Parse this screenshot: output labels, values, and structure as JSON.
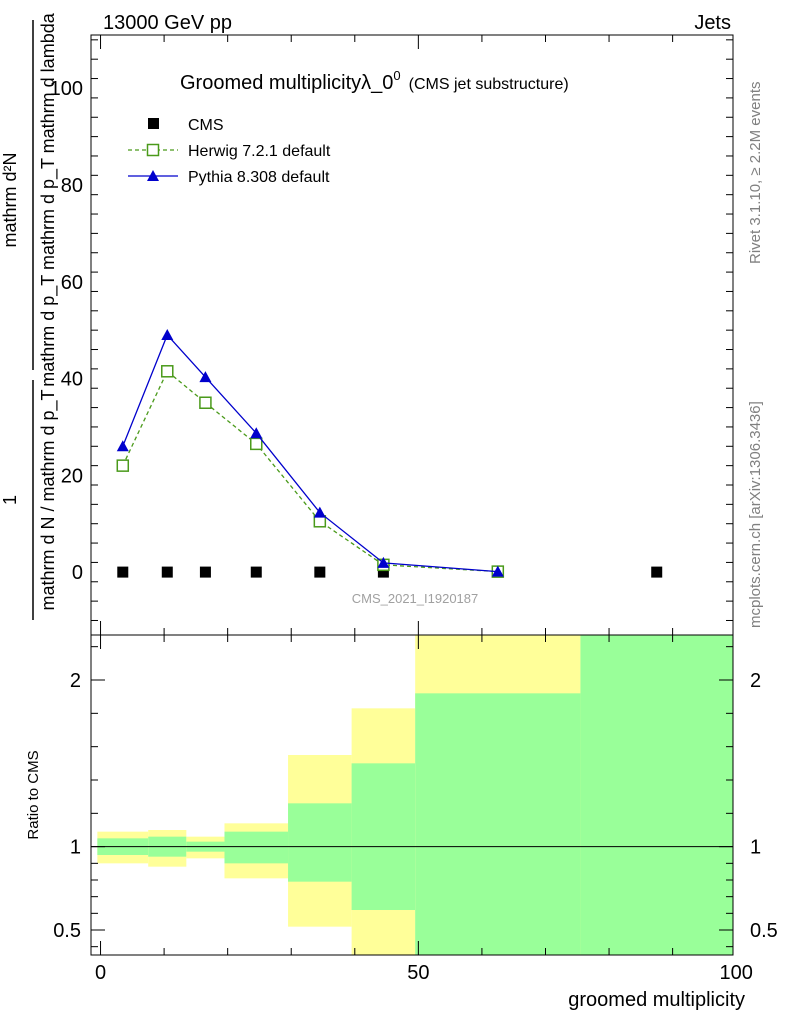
{
  "header": {
    "left": "13000 GeV pp",
    "right": "Jets"
  },
  "side_labels": {
    "rivet": "Rivet 3.1.10, ≥ 2.2M events",
    "mcplots": "mcplots.cern.ch [arXiv:1306.3436]"
  },
  "chart_data": [
    {
      "type": "line",
      "title": "Groomed multiplicityλ_0",
      "title_sup": "0",
      "title_suffix": "(CMS jet substructure)",
      "watermark": "CMS_2021_I1920187",
      "ylabel_numerator": "mathrm d²N",
      "ylabel_denominator": "mathrm d p_T mathrm d p_T mathrm d lambda",
      "ylabel_prefix_num": "1",
      "ylabel_prefix_den": "mathrm d N / mathrm d p_T",
      "xlim": [
        -1.5,
        99.5
      ],
      "ylim": [
        -13,
        111
      ],
      "yticks": [
        0,
        20,
        40,
        60,
        80,
        100
      ],
      "legend_position": "top-left",
      "series": [
        {
          "name": "CMS",
          "style": "square-filled",
          "color": "#000000",
          "x": [
            3.5,
            10.5,
            16.5,
            24.5,
            34.5,
            44.5,
            62.5,
            87.5
          ],
          "y": [
            0,
            0,
            0,
            0,
            0,
            0,
            0,
            0
          ]
        },
        {
          "name": "Herwig 7.2.1 default",
          "style": "square-open-dashed",
          "color": "#4a9a1a",
          "x": [
            3.5,
            10.5,
            16.5,
            24.5,
            34.5,
            44.5,
            62.5
          ],
          "y": [
            22,
            41.5,
            35,
            26.5,
            10.5,
            1.5,
            0.1
          ]
        },
        {
          "name": "Pythia 8.308 default",
          "style": "triangle-filled-solid",
          "color": "#0000cc",
          "x": [
            3.5,
            10.5,
            16.5,
            24.5,
            34.5,
            44.5,
            62.5
          ],
          "y": [
            26,
            49,
            40.3,
            28.7,
            12.3,
            1.9,
            0.1
          ]
        }
      ]
    },
    {
      "type": "area",
      "ylabel": "Ratio to CMS",
      "xlabel": "groomed multiplicity",
      "xlim": [
        -1.5,
        99.5
      ],
      "ylim": [
        0.35,
        2.27
      ],
      "xticks": [
        0,
        50,
        100
      ],
      "yticks": [
        0.5,
        1,
        2
      ],
      "reference_line": 1,
      "bins": [
        {
          "lo": -0.5,
          "hi": 7.5,
          "inner": [
            0.95,
            1.05
          ],
          "outer": [
            0.9,
            1.09
          ]
        },
        {
          "lo": 7.5,
          "hi": 13.5,
          "inner": [
            0.94,
            1.06
          ],
          "outer": [
            0.88,
            1.1
          ]
        },
        {
          "lo": 13.5,
          "hi": 19.5,
          "inner": [
            0.97,
            1.03
          ],
          "outer": [
            0.93,
            1.06
          ]
        },
        {
          "lo": 19.5,
          "hi": 29.5,
          "inner": [
            0.9,
            1.09
          ],
          "outer": [
            0.81,
            1.14
          ]
        },
        {
          "lo": 29.5,
          "hi": 39.5,
          "inner": [
            0.79,
            1.26
          ],
          "outer": [
            0.52,
            1.55
          ]
        },
        {
          "lo": 39.5,
          "hi": 49.5,
          "inner": [
            0.62,
            1.5
          ],
          "outer": [
            0.35,
            1.83
          ]
        },
        {
          "lo": 49.5,
          "hi": 75.5,
          "inner": [
            0.35,
            1.92
          ],
          "outer": [
            0.35,
            2.27
          ]
        },
        {
          "lo": 75.5,
          "hi": 99.5,
          "inner": [
            0.35,
            2.27
          ],
          "outer": [
            0.35,
            2.27
          ]
        }
      ]
    }
  ],
  "colors": {
    "inner_band": "#99ff99",
    "outer_band": "#ffff99"
  }
}
